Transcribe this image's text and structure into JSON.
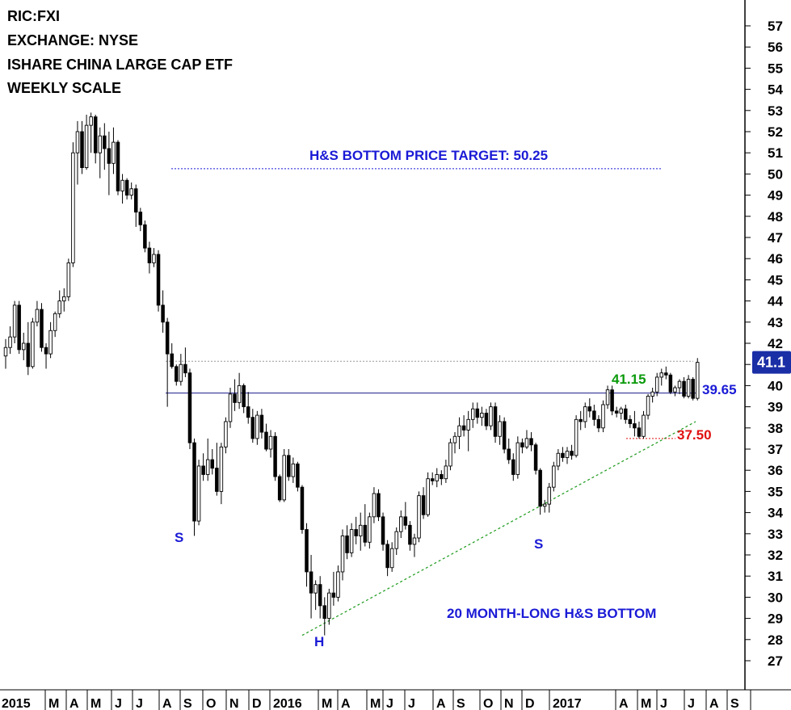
{
  "info": {
    "ric": "RIC:FXI",
    "exchange": "EXCHANGE: NYSE",
    "name": "ISHARE CHINA LARGE CAP ETF",
    "scale": "WEEKLY SCALE"
  },
  "colors": {
    "blue_text": "#1a1ad6",
    "green_text": "#0a9a0a",
    "red_text": "#e01010",
    "price_badge": "#1a2ea6",
    "resistance_line": "#1a1a8c",
    "trend_line": "#1a9a1a"
  },
  "chart_data": {
    "type": "candlestick",
    "ylim": [
      26,
      58
    ],
    "y_ticks": [
      27,
      28,
      29,
      30,
      31,
      32,
      33,
      34,
      35,
      36,
      37,
      38,
      39,
      40,
      41,
      42,
      43,
      44,
      45,
      46,
      47,
      48,
      49,
      50,
      51,
      52,
      53,
      54,
      55,
      56,
      57
    ],
    "x_tick_labels": [
      "2015",
      "M",
      "A",
      "M",
      "J",
      "J",
      "A",
      "S",
      "O",
      "N",
      "D",
      "2016",
      "M",
      "A",
      "M",
      "J",
      "J",
      "A",
      "S",
      "O",
      "N",
      "D",
      "2017",
      "A",
      "M",
      "J",
      "J",
      "A",
      "S"
    ],
    "last_price_label": "41.1",
    "last_price": 41.1,
    "annotations": {
      "target": "H&S BOTTOM PRICE TARGET: 50.25",
      "pattern": "20 MONTH-LONG H&S BOTTOM",
      "left_shoulder": "S",
      "head": "H",
      "right_shoulder": "S",
      "level_high_label": "41.15",
      "level_neckline_label": "39.65",
      "level_low_label": "37.50"
    },
    "levels": {
      "target": 50.25,
      "high": 41.15,
      "neckline": 39.65,
      "low": 37.5
    },
    "trendline": {
      "start": 28.2,
      "end": 38.3
    },
    "candles": [
      [
        41.4,
        42.2,
        40.8,
        41.8
      ],
      [
        41.8,
        42.8,
        41.5,
        42.3
      ],
      [
        42.3,
        44.0,
        42.0,
        43.8
      ],
      [
        43.8,
        44.0,
        41.5,
        41.7
      ],
      [
        41.7,
        42.5,
        41.2,
        42.0
      ],
      [
        42.0,
        43.0,
        40.5,
        40.9
      ],
      [
        40.9,
        43.2,
        40.8,
        43.0
      ],
      [
        43.0,
        44.0,
        42.8,
        43.6
      ],
      [
        43.6,
        43.9,
        41.6,
        41.8
      ],
      [
        41.8,
        42.0,
        40.8,
        41.5
      ],
      [
        41.5,
        43.0,
        41.3,
        42.6
      ],
      [
        42.6,
        43.5,
        42.3,
        43.4
      ],
      [
        43.4,
        44.5,
        43.2,
        44.0
      ],
      [
        44.0,
        44.6,
        43.5,
        44.2
      ],
      [
        44.2,
        46.0,
        44.0,
        45.8
      ],
      [
        45.8,
        51.5,
        45.6,
        51.0
      ],
      [
        51.0,
        52.5,
        49.5,
        52.0
      ],
      [
        52.0,
        52.5,
        50.0,
        50.3
      ],
      [
        50.3,
        52.8,
        50.2,
        52.3
      ],
      [
        52.3,
        52.9,
        51.0,
        52.7
      ],
      [
        52.7,
        52.8,
        50.5,
        51.0
      ],
      [
        51.0,
        52.2,
        49.8,
        51.8
      ],
      [
        51.8,
        52.4,
        50.2,
        51.2
      ],
      [
        51.2,
        52.0,
        49.0,
        50.5
      ],
      [
        50.5,
        52.2,
        50.0,
        51.5
      ],
      [
        51.5,
        51.6,
        49.0,
        49.2
      ],
      [
        49.2,
        50.0,
        48.6,
        49.7
      ],
      [
        49.7,
        49.8,
        48.8,
        49.0
      ],
      [
        49.0,
        49.6,
        48.8,
        49.3
      ],
      [
        49.3,
        49.5,
        47.5,
        48.2
      ],
      [
        48.2,
        48.4,
        47.3,
        47.6
      ],
      [
        47.6,
        47.8,
        46.3,
        46.5
      ],
      [
        46.5,
        46.8,
        45.3,
        45.8
      ],
      [
        45.8,
        46.5,
        45.6,
        46.2
      ],
      [
        46.2,
        46.4,
        43.5,
        43.8
      ],
      [
        43.8,
        44.5,
        42.5,
        43.0
      ],
      [
        43.0,
        43.2,
        39.0,
        41.5
      ],
      [
        41.5,
        42.0,
        40.8,
        40.9
      ],
      [
        40.9,
        41.0,
        40.0,
        40.2
      ],
      [
        40.2,
        41.5,
        40.0,
        41.0
      ],
      [
        41.0,
        41.8,
        40.4,
        40.6
      ],
      [
        40.6,
        40.8,
        37.0,
        37.3
      ],
      [
        37.3,
        37.5,
        32.9,
        33.6
      ],
      [
        33.6,
        36.5,
        33.4,
        36.2
      ],
      [
        36.2,
        36.8,
        35.5,
        35.8
      ],
      [
        35.8,
        37.5,
        35.5,
        36.5
      ],
      [
        36.5,
        37.0,
        35.8,
        36.1
      ],
      [
        36.1,
        37.3,
        34.8,
        35.0
      ],
      [
        35.0,
        37.3,
        34.4,
        37.1
      ],
      [
        37.1,
        38.5,
        36.8,
        38.3
      ],
      [
        38.3,
        39.9,
        38.0,
        39.6
      ],
      [
        39.6,
        40.3,
        38.8,
        39.2
      ],
      [
        39.2,
        40.6,
        38.9,
        40.0
      ],
      [
        40.0,
        40.1,
        38.7,
        39.0
      ],
      [
        39.0,
        39.7,
        38.2,
        38.5
      ],
      [
        38.5,
        38.9,
        37.3,
        37.5
      ],
      [
        37.5,
        38.8,
        37.2,
        38.6
      ],
      [
        38.6,
        38.9,
        37.5,
        37.8
      ],
      [
        37.8,
        38.2,
        36.9,
        37.0
      ],
      [
        37.0,
        37.9,
        36.6,
        37.6
      ],
      [
        37.6,
        37.8,
        35.5,
        35.7
      ],
      [
        35.7,
        35.8,
        34.5,
        34.6
      ],
      [
        34.6,
        37.0,
        34.5,
        36.7
      ],
      [
        36.7,
        37.0,
        35.5,
        35.7
      ],
      [
        35.7,
        36.6,
        35.4,
        36.3
      ],
      [
        36.3,
        36.4,
        35.0,
        35.2
      ],
      [
        35.2,
        35.3,
        33.0,
        33.2
      ],
      [
        33.2,
        33.5,
        30.5,
        31.2
      ],
      [
        31.2,
        32.0,
        29.0,
        30.2
      ],
      [
        30.2,
        30.8,
        29.4,
        30.6
      ],
      [
        30.6,
        31.0,
        29.0,
        29.6
      ],
      [
        29.6,
        30.0,
        28.2,
        29.0
      ],
      [
        29.0,
        30.4,
        28.7,
        30.2
      ],
      [
        30.2,
        31.2,
        29.6,
        30.0
      ],
      [
        30.0,
        31.5,
        29.8,
        31.2
      ],
      [
        31.2,
        33.2,
        30.8,
        32.9
      ],
      [
        32.9,
        33.4,
        31.8,
        32.1
      ],
      [
        32.1,
        33.5,
        31.9,
        33.2
      ],
      [
        33.2,
        33.8,
        32.5,
        32.9
      ],
      [
        32.9,
        34.0,
        32.2,
        33.4
      ],
      [
        33.4,
        34.4,
        32.4,
        32.6
      ],
      [
        32.6,
        34.0,
        32.3,
        33.8
      ],
      [
        33.8,
        35.2,
        33.5,
        34.9
      ],
      [
        34.9,
        35.1,
        33.6,
        33.8
      ],
      [
        33.8,
        34.0,
        32.2,
        32.5
      ],
      [
        32.5,
        32.7,
        31.0,
        31.4
      ],
      [
        31.4,
        32.6,
        31.2,
        32.3
      ],
      [
        32.3,
        33.3,
        32.0,
        33.1
      ],
      [
        33.1,
        34.1,
        32.8,
        33.8
      ],
      [
        33.8,
        34.5,
        33.2,
        33.4
      ],
      [
        33.4,
        33.6,
        32.2,
        32.5
      ],
      [
        32.5,
        33.0,
        31.9,
        32.8
      ],
      [
        32.8,
        35.0,
        32.6,
        34.8
      ],
      [
        34.8,
        35.2,
        33.7,
        33.9
      ],
      [
        33.9,
        35.9,
        33.8,
        35.6
      ],
      [
        35.6,
        35.9,
        35.3,
        35.5
      ],
      [
        35.5,
        36.1,
        35.2,
        35.8
      ],
      [
        35.8,
        36.0,
        35.3,
        35.6
      ],
      [
        35.6,
        36.5,
        35.4,
        36.2
      ],
      [
        36.2,
        37.5,
        36.0,
        37.3
      ],
      [
        37.3,
        37.8,
        36.8,
        37.6
      ],
      [
        37.6,
        38.5,
        37.0,
        38.1
      ],
      [
        38.1,
        38.6,
        37.6,
        37.9
      ],
      [
        37.9,
        38.8,
        36.9,
        38.4
      ],
      [
        38.4,
        39.2,
        38.0,
        38.9
      ],
      [
        38.9,
        39.2,
        38.2,
        38.5
      ],
      [
        38.5,
        39.0,
        38.1,
        38.7
      ],
      [
        38.7,
        38.9,
        37.9,
        38.1
      ],
      [
        38.1,
        39.2,
        37.9,
        39.0
      ],
      [
        39.0,
        39.2,
        37.3,
        37.6
      ],
      [
        37.6,
        38.6,
        37.2,
        38.3
      ],
      [
        38.3,
        38.5,
        36.8,
        37.0
      ],
      [
        37.0,
        37.5,
        36.3,
        36.5
      ],
      [
        36.5,
        36.8,
        35.5,
        35.8
      ],
      [
        35.8,
        37.6,
        35.6,
        37.3
      ],
      [
        37.3,
        37.5,
        36.8,
        37.1
      ],
      [
        37.1,
        37.9,
        37.0,
        37.5
      ],
      [
        37.5,
        37.8,
        36.9,
        37.2
      ],
      [
        37.2,
        37.3,
        35.8,
        36.0
      ],
      [
        36.0,
        36.1,
        33.9,
        34.3
      ],
      [
        34.3,
        34.6,
        34.0,
        34.4
      ],
      [
        34.4,
        35.4,
        34.0,
        35.2
      ],
      [
        35.2,
        36.4,
        35.0,
        36.2
      ],
      [
        36.2,
        37.0,
        36.0,
        36.8
      ],
      [
        36.8,
        37.1,
        36.4,
        36.6
      ],
      [
        36.6,
        37.1,
        36.3,
        36.9
      ],
      [
        36.9,
        37.2,
        36.5,
        36.7
      ],
      [
        36.7,
        38.6,
        36.6,
        38.4
      ],
      [
        38.4,
        38.8,
        37.9,
        38.3
      ],
      [
        38.3,
        39.2,
        38.0,
        39.0
      ],
      [
        39.0,
        39.4,
        38.5,
        38.8
      ],
      [
        38.8,
        39.1,
        38.1,
        38.4
      ],
      [
        38.4,
        38.6,
        37.8,
        38.0
      ],
      [
        38.0,
        39.3,
        37.8,
        39.1
      ],
      [
        39.1,
        40.0,
        38.9,
        39.8
      ],
      [
        39.8,
        40.0,
        38.6,
        38.8
      ],
      [
        38.8,
        39.0,
        38.5,
        38.7
      ],
      [
        38.7,
        39.0,
        38.4,
        38.9
      ],
      [
        38.9,
        39.1,
        38.2,
        38.4
      ],
      [
        38.4,
        38.6,
        38.0,
        38.2
      ],
      [
        38.2,
        38.8,
        37.6,
        38.0
      ],
      [
        38.0,
        38.3,
        37.5,
        37.6
      ],
      [
        37.6,
        38.8,
        37.5,
        38.6
      ],
      [
        38.6,
        39.6,
        38.4,
        39.5
      ],
      [
        39.5,
        39.9,
        39.2,
        39.7
      ],
      [
        39.7,
        40.6,
        39.5,
        40.4
      ],
      [
        40.4,
        40.8,
        40.0,
        40.6
      ],
      [
        40.6,
        40.9,
        40.3,
        40.5
      ],
      [
        40.5,
        40.6,
        39.6,
        39.7
      ],
      [
        39.7,
        40.0,
        39.5,
        39.9
      ],
      [
        39.9,
        40.3,
        39.6,
        40.2
      ],
      [
        40.2,
        40.4,
        39.4,
        39.5
      ],
      [
        39.5,
        40.5,
        39.4,
        40.3
      ],
      [
        40.3,
        40.4,
        39.3,
        39.4
      ],
      [
        39.4,
        41.3,
        39.3,
        41.1
      ]
    ]
  }
}
